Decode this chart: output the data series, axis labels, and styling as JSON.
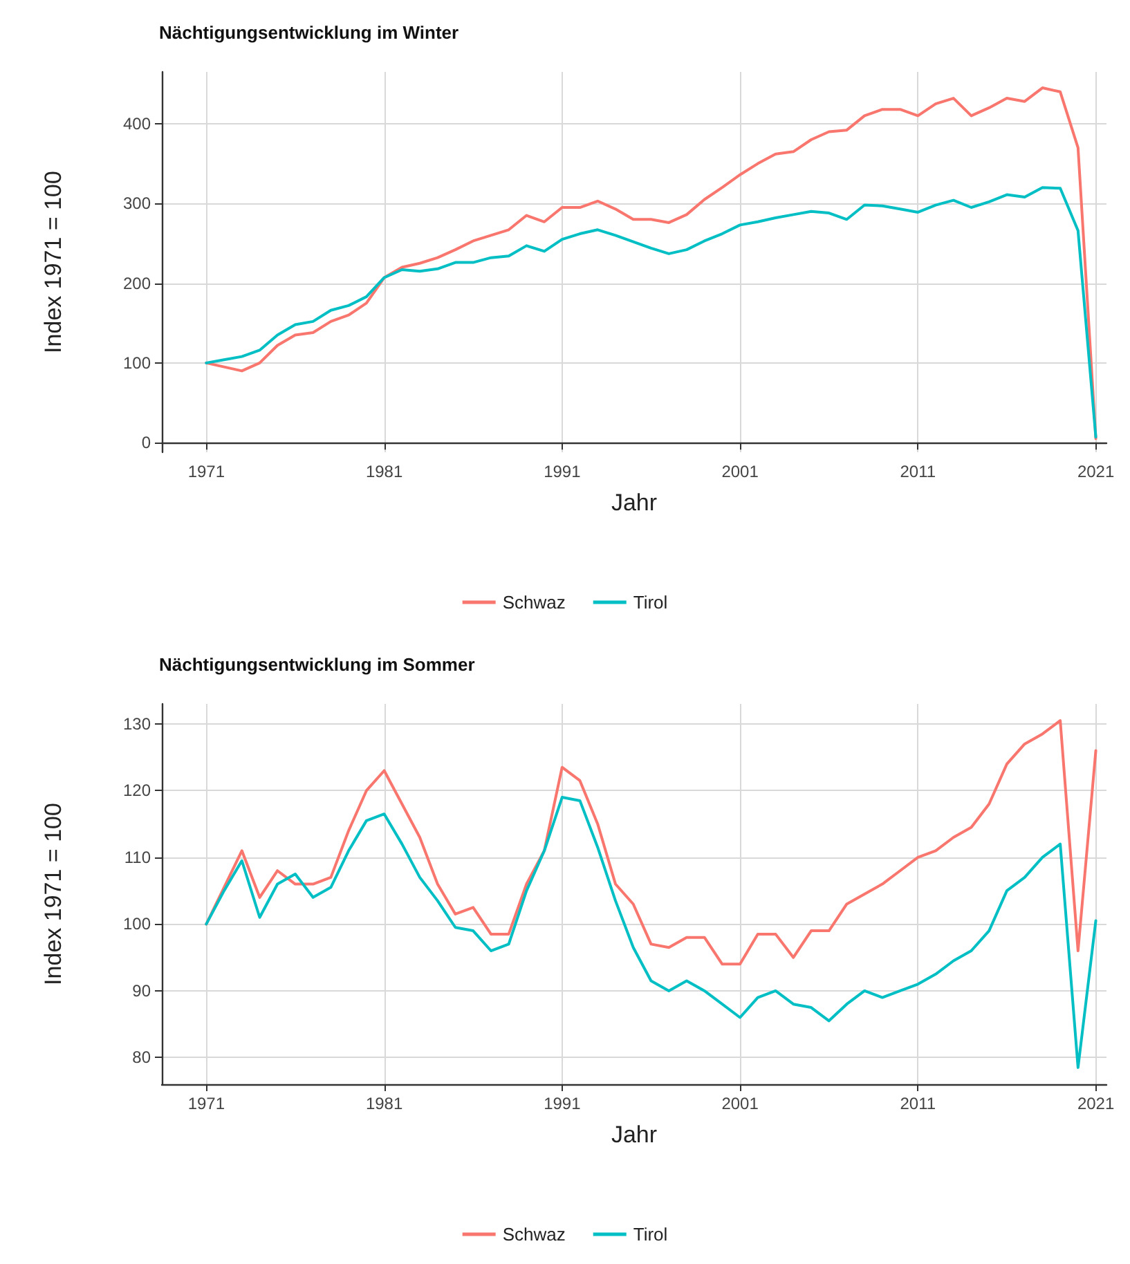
{
  "chart_data": [
    {
      "type": "line",
      "title": "Nächtigungsentwicklung im Winter",
      "xlabel": "Jahr",
      "ylabel": "Index 1971 = 100",
      "x": [
        1971,
        1972,
        1973,
        1974,
        1975,
        1976,
        1977,
        1978,
        1979,
        1980,
        1981,
        1982,
        1983,
        1984,
        1985,
        1986,
        1987,
        1988,
        1989,
        1990,
        1991,
        1992,
        1993,
        1994,
        1995,
        1996,
        1997,
        1998,
        1999,
        2000,
        2001,
        2002,
        2003,
        2004,
        2005,
        2006,
        2007,
        2008,
        2009,
        2010,
        2011,
        2012,
        2013,
        2014,
        2015,
        2016,
        2017,
        2018,
        2019,
        2020,
        2021
      ],
      "series": [
        {
          "name": "Schwaz",
          "color": "#f8766d",
          "values": [
            100,
            95,
            90,
            100,
            122,
            135,
            138,
            152,
            160,
            175,
            207,
            220,
            225,
            232,
            242,
            253,
            260,
            267,
            285,
            277,
            295,
            295,
            303,
            293,
            280,
            280,
            276,
            286,
            305,
            320,
            336,
            350,
            362,
            365,
            380,
            390,
            392,
            410,
            418,
            418,
            410,
            425,
            432,
            410,
            420,
            432,
            428,
            445,
            440,
            370,
            5
          ]
        },
        {
          "name": "Tirol",
          "color": "#00bfc4",
          "values": [
            100,
            104,
            108,
            116,
            135,
            148,
            152,
            166,
            172,
            183,
            207,
            217,
            215,
            218,
            226,
            226,
            232,
            234,
            247,
            240,
            255,
            262,
            267,
            260,
            252,
            244,
            237,
            242,
            253,
            262,
            273,
            277,
            282,
            286,
            290,
            288,
            280,
            298,
            297,
            293,
            289,
            298,
            304,
            295,
            302,
            311,
            308,
            320,
            319,
            266,
            7
          ]
        }
      ],
      "xlim": [
        1968.5,
        2021.6
      ],
      "xticks": [
        1971,
        1981,
        1991,
        2001,
        2011,
        2021
      ],
      "ylim": [
        -12,
        465
      ],
      "yticks": [
        0,
        100,
        200,
        300,
        400
      ],
      "grid": true,
      "legend": "bottom",
      "line_style": "solid",
      "marker": "none"
    },
    {
      "type": "line",
      "title": "Nächtigungsentwicklung im Sommer",
      "xlabel": "Jahr",
      "ylabel": "Index 1971 = 100",
      "x": [
        1971,
        1972,
        1973,
        1974,
        1975,
        1976,
        1977,
        1978,
        1979,
        1980,
        1981,
        1982,
        1983,
        1984,
        1985,
        1986,
        1987,
        1988,
        1989,
        1990,
        1991,
        1992,
        1993,
        1994,
        1995,
        1996,
        1997,
        1998,
        1999,
        2000,
        2001,
        2002,
        2003,
        2004,
        2005,
        2006,
        2007,
        2008,
        2009,
        2010,
        2011,
        2012,
        2013,
        2014,
        2015,
        2016,
        2017,
        2018,
        2019,
        2020,
        2021
      ],
      "series": [
        {
          "name": "Schwaz",
          "color": "#f8766d",
          "values": [
            100,
            105.5,
            111,
            104,
            108,
            106,
            106,
            107,
            114,
            120,
            123,
            118,
            113,
            106,
            101.5,
            102.5,
            98.5,
            98.5,
            106,
            111,
            123.5,
            121.5,
            115,
            106,
            103,
            97,
            96.5,
            98,
            98,
            94,
            94,
            98.5,
            98.5,
            95,
            99,
            99,
            103,
            104.5,
            106,
            108,
            110,
            111,
            113,
            114.5,
            118,
            124,
            127,
            128.5,
            130.5,
            96,
            126
          ]
        },
        {
          "name": "Tirol",
          "color": "#00bfc4",
          "values": [
            100,
            105,
            109.5,
            101,
            106,
            107.5,
            104,
            105.5,
            111,
            115.5,
            116.5,
            112,
            107,
            103.5,
            99.5,
            99,
            96,
            97,
            105,
            111,
            119,
            118.5,
            111.5,
            103.5,
            96.5,
            91.5,
            90,
            91.5,
            90,
            88,
            86,
            89,
            90,
            88,
            87.5,
            85.5,
            88,
            90,
            89,
            90,
            91,
            92.5,
            94.5,
            96,
            99,
            105,
            107,
            110,
            112,
            78.5,
            100.5
          ]
        }
      ],
      "xlim": [
        1968.5,
        2021.6
      ],
      "xticks": [
        1971,
        1981,
        1991,
        2001,
        2011,
        2021
      ],
      "ylim": [
        76,
        133
      ],
      "yticks": [
        80,
        90,
        100,
        110,
        120,
        130
      ],
      "grid": true,
      "legend": "bottom",
      "line_style": "solid",
      "marker": "none"
    }
  ]
}
